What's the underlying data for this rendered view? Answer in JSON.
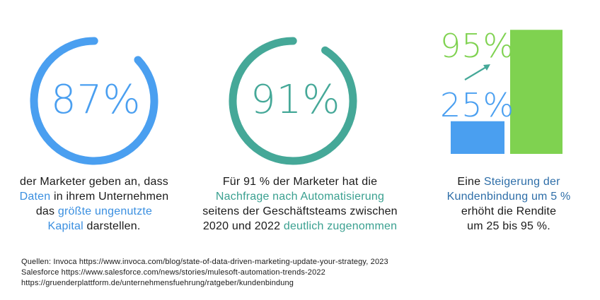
{
  "colors": {
    "blue": "#4a9ff0",
    "teal": "#45a898",
    "green": "#7fd250",
    "highlight_blue": "#3a8fe0",
    "highlight_teal": "#3aa090",
    "highlight_steel": "#2e6ea8",
    "text": "#1a1a1a"
  },
  "chart_data": [
    {
      "type": "pie",
      "value": 87,
      "label": "87%",
      "caption": {
        "line1": "der Marketer geben an, dass",
        "line2_hl": "Daten",
        "line2_rest": " in ihrem Unternehmen",
        "line3_pre": "das ",
        "line3_hl": "größte ungenutzte",
        "line4_hl": "Kapital",
        "line4_rest": " darstellen."
      }
    },
    {
      "type": "pie",
      "value": 91,
      "label": "91%",
      "caption": {
        "line1": "Für 91 % der Marketer hat die",
        "line2_hl": "Nachfrage nach Automatisierung",
        "line3": "seitens der Geschäftsteams zwischen",
        "line4_pre": "2020 und 2022 ",
        "line4_hl": "deutlich zugenommen"
      }
    },
    {
      "type": "bar",
      "categories": [
        "",
        ""
      ],
      "values": [
        25,
        95
      ],
      "labels": [
        "25%",
        "95%"
      ],
      "ylim": [
        0,
        100
      ],
      "caption": {
        "line1_pre": "Eine ",
        "line1_hl": "Steigerung der",
        "line2_hl": "Kundenbindung um 5 %",
        "line3": "erhöht die Rendite",
        "line4": "um 25 bis 95 %."
      }
    }
  ],
  "sources": {
    "line1": "Quellen: Invoca https://www.invoca.com/blog/state-of-data-driven-marketing-update-your-strategy, 2023",
    "line2": "Salesforce https://www.salesforce.com/news/stories/mulesoft-automation-trends-2022",
    "line3": "https://gruenderplattform.de/unternehmensfuehrung/ratgeber/kundenbindung"
  }
}
